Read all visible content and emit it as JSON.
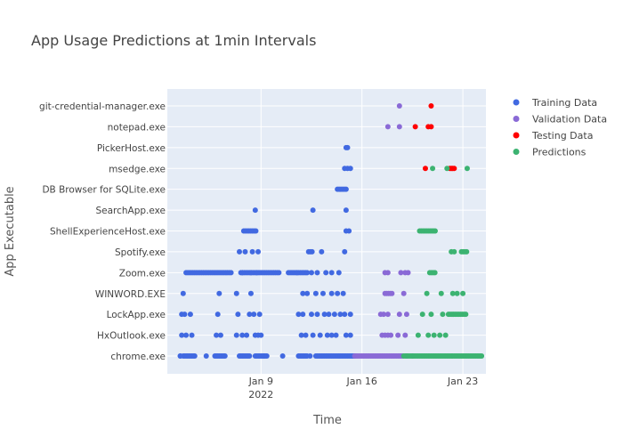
{
  "chart_data": {
    "type": "scatter",
    "title": "App Usage Predictions at 1min Intervals",
    "xlabel": "Time",
    "ylabel": "App Executable",
    "categories": [
      "chrome.exe",
      "HxOutlook.exe",
      "LockApp.exe",
      "WINWORD.EXE",
      "Zoom.exe",
      "Spotify.exe",
      "ShellExperienceHost.exe",
      "SearchApp.exe",
      "DB Browser for SQLite.exe",
      "msedge.exe",
      "PickerHost.exe",
      "notepad.exe",
      "git-credential-manager.exe"
    ],
    "x_ticks": [
      {
        "value": 9,
        "label": "Jan 9",
        "sublabel": "2022"
      },
      {
        "value": 16,
        "label": "Jan 16",
        "sublabel": ""
      },
      {
        "value": 23,
        "label": "Jan 23",
        "sublabel": ""
      }
    ],
    "xlim": [
      2.5,
      24.6
    ],
    "x_unit": "day of January 2022",
    "grid": true,
    "legend_position": "top-right",
    "series": [
      {
        "name": "Training Data",
        "color": "#4169e1",
        "points": [
          [
            "chrome.exe",
            [
              [
                3.6,
                4.4
              ],
              [
                5.8,
                6.5
              ],
              [
                7.5,
                8.2
              ],
              [
                8.6,
                9.4
              ],
              [
                11.6,
                12.2
              ],
              [
                12.8,
                15.5
              ]
            ],
            0.1,
            [
              3.4,
              3.4,
              5.2,
              9.2,
              10.5,
              12.4
            ]
          ],
          [
            "HxOutlook.exe",
            [],
            0.25,
            [
              3.5,
              3.8,
              4.2,
              5.9,
              6.2,
              7.3,
              7.7,
              8.0,
              8.6,
              8.8,
              9.0,
              11.8,
              12.1,
              12.6,
              13.1,
              13.6,
              13.9,
              14.2,
              14.9,
              15.2
            ]
          ],
          [
            "LockApp.exe",
            [],
            0.25,
            [
              3.5,
              3.7,
              4.1,
              6.0,
              7.4,
              8.2,
              8.5,
              8.9,
              11.6,
              11.9,
              12.5,
              12.9,
              13.4,
              13.7,
              14.1,
              14.5,
              14.8,
              15.2
            ]
          ],
          [
            "WINWORD.EXE",
            [],
            0.25,
            [
              3.6,
              6.1,
              7.3,
              8.3,
              11.9,
              12.2,
              12.8,
              13.3,
              13.9,
              14.3,
              14.7
            ]
          ],
          [
            "Zoom.exe",
            [
              [
                3.8,
                7.0
              ],
              [
                7.6,
                10.3
              ],
              [
                10.9,
                12.2
              ]
            ],
            0.12,
            [
              7.7,
              8.3,
              8.7,
              11.5,
              12.2,
              12.5,
              12.9,
              13.5,
              13.9,
              14.4
            ]
          ],
          [
            "Spotify.exe",
            [
              [
                12.3,
                12.6
              ]
            ],
            0.12,
            [
              7.5,
              7.9,
              8.4,
              8.8,
              13.2,
              14.8
            ]
          ],
          [
            "ShellExperienceHost.exe",
            [
              [
                7.8,
                8.7
              ]
            ],
            0.12,
            [
              14.9,
              15.1
            ]
          ],
          [
            "SearchApp.exe",
            [],
            0.25,
            [
              8.6,
              12.6,
              14.9
            ]
          ],
          [
            "DB Browser for SQLite.exe",
            [
              [
                14.3,
                14.9
              ]
            ],
            0.12,
            []
          ],
          [
            "msedge.exe",
            [],
            0.25,
            [
              14.8,
              15.0,
              15.2
            ]
          ],
          [
            "PickerHost.exe",
            [],
            0.25,
            [
              14.9,
              15.0
            ]
          ]
        ]
      },
      {
        "name": "Validation Data",
        "color": "#8a6ad6",
        "points": [
          [
            "chrome.exe",
            [
              [
                15.5,
                18.8
              ]
            ],
            0.1,
            [
              19.1,
              19.5
            ]
          ],
          [
            "HxOutlook.exe",
            [],
            0.25,
            [
              17.4,
              17.6,
              17.8,
              18.0,
              18.5,
              19.0
            ]
          ],
          [
            "LockApp.exe",
            [],
            0.25,
            [
              17.3,
              17.5,
              17.8,
              18.6,
              19.1
            ]
          ],
          [
            "WINWORD.EXE",
            [
              [
                17.6,
                18.1
              ]
            ],
            0.12,
            [
              18.9
            ]
          ],
          [
            "Zoom.exe",
            [],
            0.25,
            [
              17.6,
              17.8,
              18.7,
              19.0,
              19.2
            ]
          ],
          [
            "notepad.exe",
            [],
            0.25,
            [
              17.8,
              18.6
            ]
          ],
          [
            "git-credential-manager.exe",
            [],
            0.25,
            [
              18.6
            ]
          ]
        ]
      },
      {
        "name": "Testing Data",
        "color": "#ff0000",
        "points": [
          [
            "msedge.exe",
            [
              [
                22.1,
                22.4
              ]
            ],
            0.1,
            [
              20.4
            ]
          ],
          [
            "notepad.exe",
            [],
            0.25,
            [
              19.7,
              20.6,
              20.8
            ]
          ],
          [
            "git-credential-manager.exe",
            [],
            0.25,
            [
              20.8
            ]
          ]
        ]
      },
      {
        "name": "Predictions",
        "color": "#3cb371",
        "points": [
          [
            "chrome.exe",
            [
              [
                18.9,
                24.3
              ]
            ],
            0.1,
            []
          ],
          [
            "HxOutlook.exe",
            [],
            0.25,
            [
              19.9,
              20.6,
              21.0,
              21.4,
              21.8
            ]
          ],
          [
            "LockApp.exe",
            [
              [
                22.0,
                23.3
              ]
            ],
            0.12,
            [
              20.2,
              20.8,
              21.6
            ]
          ],
          [
            "WINWORD.EXE",
            [],
            0.25,
            [
              20.5,
              21.5,
              22.3,
              22.6,
              23.0
            ]
          ],
          [
            "Zoom.exe",
            [
              [
                20.7,
                21.1
              ]
            ],
            0.12,
            []
          ],
          [
            "Spotify.exe",
            [
              [
                22.9,
                23.3
              ]
            ],
            0.12,
            [
              22.2,
              22.4
            ]
          ],
          [
            "ShellExperienceHost.exe",
            [
              [
                20.0,
                21.1
              ]
            ],
            0.12,
            []
          ],
          [
            "msedge.exe",
            [],
            0.25,
            [
              20.9,
              21.9,
              23.3
            ]
          ]
        ]
      }
    ]
  }
}
